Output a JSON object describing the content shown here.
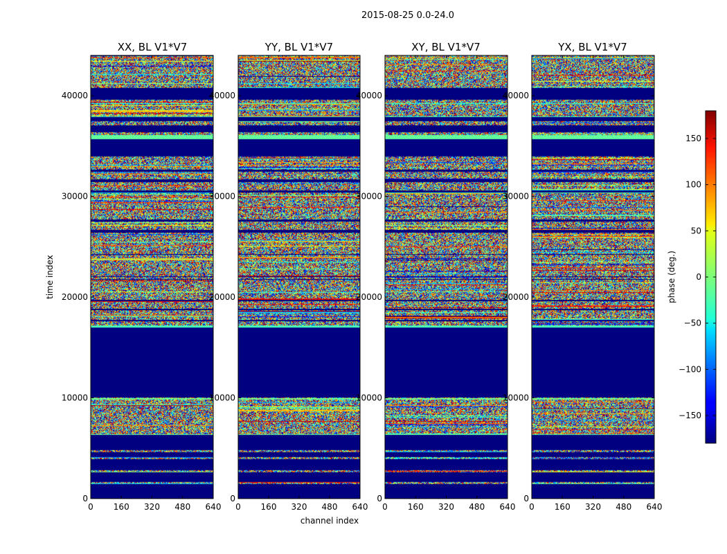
{
  "chart_data": {
    "type": "heatmap",
    "suptitle": "2015-08-25 0.0-24.0",
    "xlabel": "channel index",
    "ylabel": "time index",
    "xlim": [
      0,
      640
    ],
    "ylim": [
      0,
      44000
    ],
    "xticks": [
      "0",
      "160",
      "320",
      "480",
      "640"
    ],
    "yticks": [
      "0",
      "10000",
      "20000",
      "30000",
      "40000"
    ],
    "panels": [
      {
        "title": "XX, BL V1*V7"
      },
      {
        "title": "YY, BL V1*V7"
      },
      {
        "title": "XY, BL V1*V7"
      },
      {
        "title": "YX, BL V1*V7"
      }
    ],
    "colorbar": {
      "label": "phase (deg.)",
      "range": [
        -180,
        180
      ],
      "ticks": [
        "150",
        "100",
        "50",
        "0",
        "−50",
        "−100",
        "−150"
      ],
      "colormap": "jet"
    },
    "flagged_time_ranges": [
      [
        0,
        1400
      ],
      [
        1600,
        2600
      ],
      [
        2800,
        3900
      ],
      [
        4100,
        4600
      ],
      [
        4800,
        6300
      ],
      [
        10000,
        17000
      ],
      [
        17600,
        17750
      ],
      [
        18700,
        18800
      ],
      [
        19600,
        19700
      ],
      [
        21700,
        21800
      ],
      [
        22000,
        22100
      ],
      [
        24200,
        24300
      ],
      [
        26400,
        26700
      ],
      [
        27500,
        27700
      ],
      [
        30400,
        30600
      ],
      [
        31400,
        31700
      ],
      [
        32500,
        32700
      ],
      [
        34000,
        35700
      ],
      [
        36400,
        37100
      ],
      [
        37500,
        37900
      ],
      [
        39600,
        40800
      ]
    ],
    "colored_bands": [
      {
        "range": [
          6300,
          6400
        ],
        "value": -10
      },
      {
        "range": [
          9800,
          9950
        ],
        "value": -5
      },
      {
        "range": [
          17000,
          17150
        ],
        "value": -20
      },
      {
        "range": [
          35700,
          36100
        ],
        "value": -10
      },
      {
        "range": [
          37900,
          38000
        ],
        "value": -20
      },
      {
        "range": [
          39200,
          39300
        ],
        "value": -30
      }
    ]
  }
}
